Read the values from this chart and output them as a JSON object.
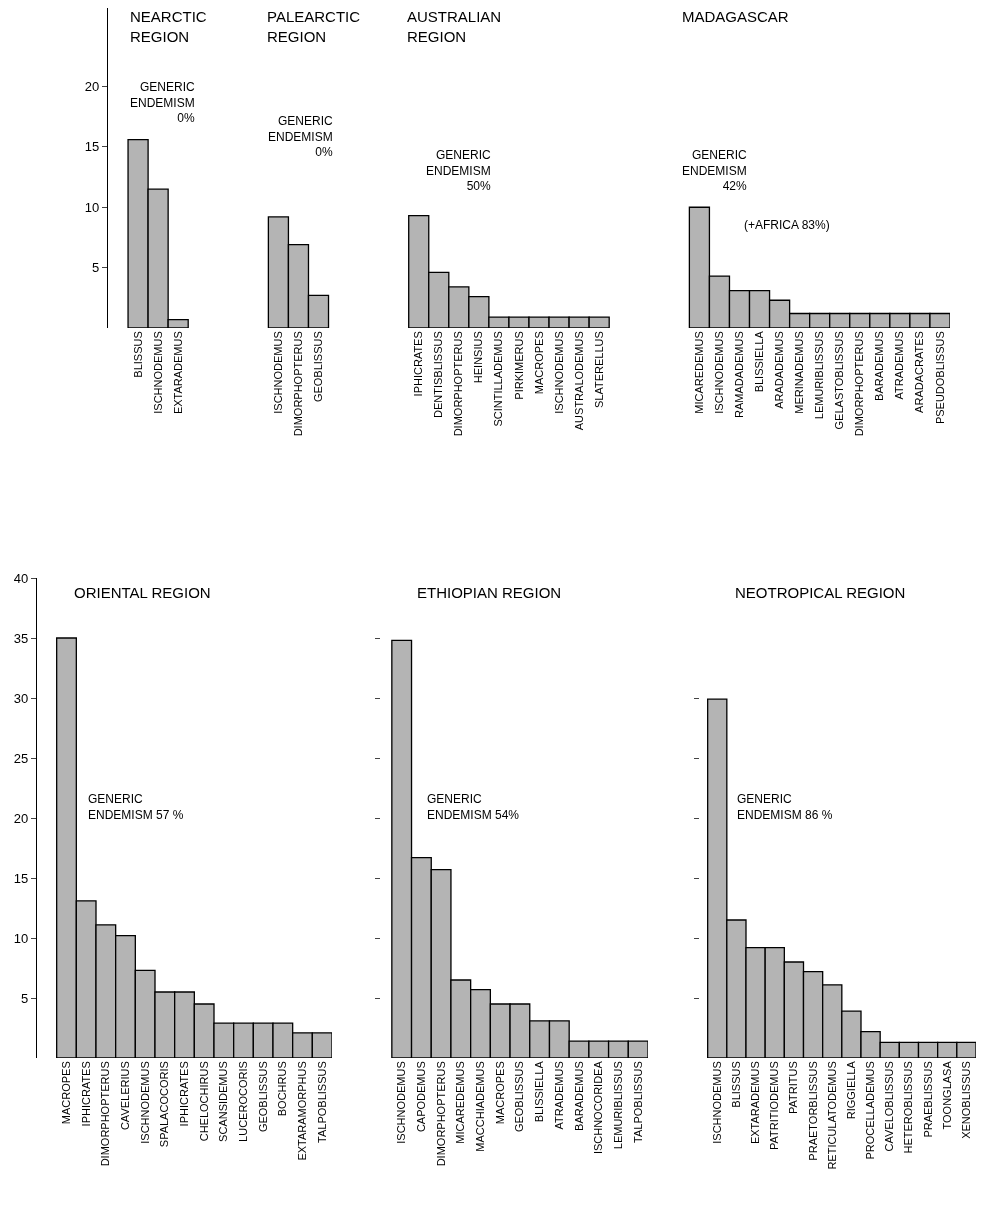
{
  "chart_data": [
    {
      "type": "bar",
      "categories": [
        "BLISSUS",
        "ISCHNODEMUS",
        "EXTARADEMUS",
        null,
        null,
        null,
        null,
        "ISCHNODEMUS",
        "DIMORPHOPTERUS",
        "GEOBLISSUS",
        null,
        null,
        null,
        null,
        "IPHICRATES",
        "DENTISBLISSUS",
        "DIMORPHOPTERUS",
        "HEINSIUS",
        "SCINTILLADEMUS",
        "PIRKIMERUS",
        "MACROPES",
        "ISCHNODEMUS",
        "AUSTRALODEMUS",
        "SLATERELLUS",
        null,
        null,
        null,
        null,
        "MICAREDEMUS",
        "ISCHNODEMUS",
        "RAMADADEMUS",
        "BLISSIELLA",
        "ARADADEMUS",
        "MERINADEMUS",
        "LEMURIBLISSUS",
        "GELASTOBLISSUS",
        "DIMORPHOPTERUS",
        "BARADEMUS",
        "ATRADEMUS",
        "ARADACRATES",
        "PSEUDOBLISSUS"
      ],
      "values": [
        15.6,
        11.5,
        0.7,
        null,
        null,
        null,
        null,
        9.2,
        6.9,
        2.7,
        null,
        null,
        null,
        null,
        9.3,
        4.6,
        3.4,
        2.6,
        0.9,
        0.9,
        0.9,
        0.9,
        0.9,
        0.9,
        null,
        null,
        null,
        null,
        10.0,
        4.3,
        3.1,
        3.1,
        2.3,
        1.2,
        1.2,
        1.2,
        1.2,
        1.2,
        1.2,
        1.2,
        1.2
      ],
      "color": "#b4b4b4",
      "ylim": [
        0,
        26.5
      ],
      "yticks": [
        5,
        10,
        15,
        20
      ],
      "annotations": [
        "NEARCTIC REGION",
        "PALEARCTIC REGION",
        "AUSTRALIAN REGION",
        "MADAGASCAR",
        "GENERIC ENDEMISM 0%",
        "GENERIC ENDEMISM 0%",
        "GENERIC ENDEMISM 50%",
        "GENERIC ENDEMISM 42%",
        "(+AFRICA 83%)"
      ]
    },
    {
      "type": "bar",
      "title": "ORIENTAL REGION",
      "categories": [
        "MACROPES",
        "IPHICRATES",
        "DIMORPHOPTERUS",
        "CAVELERIUS",
        "ISCHNODEMUS",
        "SPALACOCORIS",
        "IPHICRATES",
        "CHELOCHIRUS",
        "SCANSIDEMUS",
        "LUCEROCORIS",
        "GEOBLISSUS",
        "BOCHRUS",
        "EXTARAMORPHUS",
        "TALPOBLISSUS"
      ],
      "values": [
        35.0,
        13.1,
        11.1,
        10.2,
        7.3,
        5.5,
        5.5,
        4.5,
        2.9,
        2.9,
        2.9,
        2.9,
        2.1,
        2.1
      ],
      "color": "#b4b4b4",
      "ylim": [
        0,
        40
      ],
      "yticks": [
        5,
        10,
        15,
        20,
        25,
        30,
        35,
        40
      ],
      "annotations": [
        "GENERIC ENDEMISM 57 %"
      ]
    },
    {
      "type": "bar",
      "title": "ETHIOPIAN REGION",
      "categories": [
        "ISCHNODEMUS",
        "CAPODEMUS",
        "DIMORPHOPTERUS",
        "MICAREDEMUS",
        "MACCHIADEMUS",
        "MACROPES",
        "GEOBLISSUS",
        "BLISSIELLA",
        "ATRADEMUS",
        "BARADEMUS",
        "ISCHNOCORIDEA",
        "LEMURIBLISSUS",
        "TALPOBLISSUS"
      ],
      "values": [
        34.8,
        16.7,
        15.7,
        6.5,
        5.7,
        4.5,
        4.5,
        3.1,
        3.1,
        1.4,
        1.4,
        1.4,
        1.4
      ],
      "color": "#b4b4b4",
      "ylim": [
        0,
        40
      ],
      "yticks": [
        {
          "value": 5,
          "label": null
        },
        {
          "value": 10,
          "label": null
        },
        {
          "value": 15,
          "label": null
        },
        {
          "value": 20,
          "label": null
        },
        {
          "value": 25,
          "label": null
        },
        {
          "value": 30,
          "label": null
        },
        {
          "value": 35,
          "label": null
        }
      ],
      "tick_labels": "x",
      "annotations": [
        "GENERIC ENDEMISM 54%"
      ]
    },
    {
      "type": "bar",
      "title": "NEOTROPICAL REGION",
      "categories": [
        "ISCHNODEMUS",
        "BLISSUS",
        "EXTARADEMUS",
        "PATRITIODEMUS",
        "PATRITUS",
        "PRAETORBLISSUS",
        "RETICULATODEMUS",
        "RIGGIELLA",
        "PROCELLADEMUS",
        "CAVELOBLISSUS",
        "HETEROBLISSUS",
        "PRAEBLISSUS",
        "TOONGLASA",
        "XENOBLISSUS"
      ],
      "values": [
        29.9,
        11.5,
        9.2,
        9.2,
        8.0,
        7.2,
        6.1,
        3.9,
        2.2,
        1.3,
        1.3,
        1.3,
        1.3,
        1.3
      ],
      "color": "#b4b4b4",
      "ylim": [
        0,
        40
      ],
      "yticks": [
        {
          "value": 5,
          "label": null
        },
        {
          "value": 10,
          "label": null
        },
        {
          "value": 15,
          "label": null
        },
        {
          "value": 20,
          "label": null
        },
        {
          "value": 25,
          "label": null
        },
        {
          "value": 30,
          "label": null
        }
      ],
      "tick_labels": "x",
      "annotations": [
        "GENERIC ENDEMISM 86 %"
      ]
    }
  ]
}
